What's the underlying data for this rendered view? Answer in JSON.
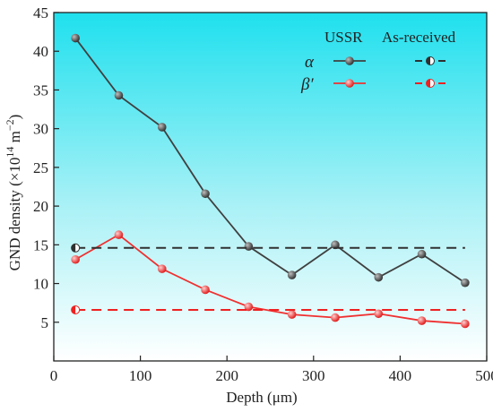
{
  "chart_data": {
    "type": "line",
    "xlabel": "Depth (μm)",
    "ylabel_prefix": "GND density (×10",
    "ylabel_sup1": "14",
    "ylabel_mid": " m",
    "ylabel_sup2": "−2",
    "ylabel_suffix": ")",
    "xlim": [
      0,
      500
    ],
    "ylim": [
      0,
      45
    ],
    "xticks": [
      0,
      100,
      200,
      300,
      400,
      500
    ],
    "yticks": [
      5,
      10,
      15,
      20,
      25,
      30,
      35,
      40,
      45
    ],
    "legend": {
      "col_headers": [
        "USSR",
        "As-received"
      ],
      "row_labels": [
        "α",
        "β′"
      ]
    },
    "series": [
      {
        "name": "α",
        "group": "USSR",
        "color": "#404040",
        "style": "solid",
        "x": [
          25,
          75,
          125,
          175,
          225,
          275,
          325,
          375,
          425,
          475
        ],
        "y": [
          41.7,
          34.3,
          30.2,
          21.6,
          14.8,
          11.1,
          15.0,
          10.8,
          13.8,
          10.1
        ]
      },
      {
        "name": "β′",
        "group": "USSR",
        "color": "#f03030",
        "style": "solid",
        "x": [
          25,
          75,
          125,
          175,
          225,
          275,
          325,
          375,
          425,
          475
        ],
        "y": [
          13.1,
          16.3,
          11.9,
          9.2,
          7.0,
          6.0,
          5.6,
          6.1,
          5.2,
          4.8
        ]
      },
      {
        "name": "α",
        "group": "As-received",
        "color": "#303030",
        "style": "dashed",
        "x": [
          25,
          475
        ],
        "y": [
          14.6,
          14.6
        ]
      },
      {
        "name": "β′",
        "group": "As-received",
        "color": "#f02020",
        "style": "dashed",
        "x": [
          25,
          475
        ],
        "y": [
          6.6,
          6.6
        ]
      }
    ]
  }
}
